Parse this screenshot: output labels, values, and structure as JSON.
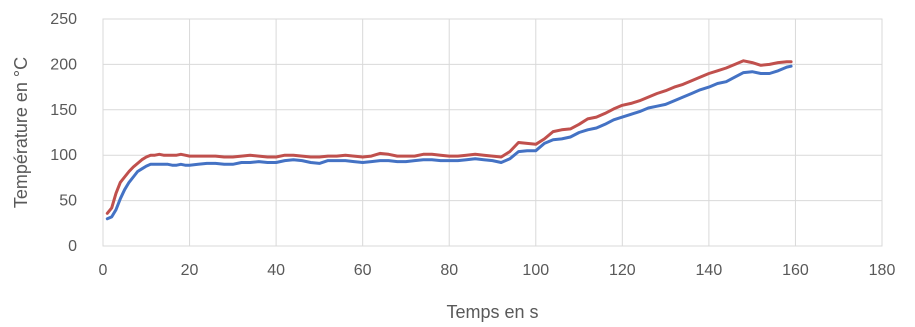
{
  "chart_data": {
    "type": "line",
    "title": "",
    "xlabel": "Temps en s",
    "ylabel": "Température en °C",
    "xlim": [
      0,
      180
    ],
    "ylim": [
      0,
      250
    ],
    "xticks": [
      0,
      20,
      40,
      60,
      80,
      100,
      120,
      140,
      160,
      180
    ],
    "yticks": [
      0,
      50,
      100,
      150,
      200,
      250
    ],
    "grid": true,
    "legend": "none",
    "series": [
      {
        "color": "#4472C4",
        "x": [
          1,
          2,
          3,
          4,
          5,
          6,
          7,
          8,
          9,
          10,
          11,
          12,
          13,
          14,
          15,
          16,
          17,
          18,
          19,
          20,
          22,
          24,
          26,
          28,
          30,
          32,
          34,
          36,
          38,
          40,
          42,
          44,
          46,
          48,
          50,
          52,
          54,
          56,
          58,
          60,
          62,
          64,
          66,
          68,
          70,
          72,
          74,
          76,
          78,
          80,
          82,
          84,
          86,
          88,
          90,
          92,
          94,
          96,
          98,
          100,
          102,
          104,
          106,
          108,
          110,
          112,
          114,
          116,
          118,
          120,
          122,
          124,
          126,
          128,
          130,
          132,
          134,
          136,
          138,
          140,
          142,
          144,
          146,
          148,
          150,
          152,
          154,
          156,
          158,
          159
        ],
        "y": [
          30,
          32,
          40,
          52,
          62,
          70,
          76,
          82,
          85,
          88,
          90,
          90,
          90,
          90,
          90,
          89,
          89,
          90,
          89,
          89,
          90,
          91,
          91,
          90,
          90,
          92,
          92,
          93,
          92,
          92,
          94,
          95,
          94,
          92,
          91,
          94,
          94,
          94,
          93,
          92,
          93,
          94,
          94,
          93,
          93,
          94,
          95,
          95,
          94,
          94,
          94,
          95,
          96,
          95,
          94,
          92,
          96,
          104,
          105,
          105,
          113,
          117,
          118,
          120,
          125,
          128,
          130,
          134,
          139,
          142,
          145,
          148,
          152,
          154,
          156,
          160,
          164,
          168,
          172,
          175,
          179,
          181,
          186,
          191,
          192,
          190,
          190,
          193,
          197,
          198
        ]
      },
      {
        "color": "#C0504D",
        "x": [
          1,
          2,
          3,
          4,
          5,
          6,
          7,
          8,
          9,
          10,
          11,
          12,
          13,
          14,
          15,
          16,
          17,
          18,
          19,
          20,
          22,
          24,
          26,
          28,
          30,
          32,
          34,
          36,
          38,
          40,
          42,
          44,
          46,
          48,
          50,
          52,
          54,
          56,
          58,
          60,
          62,
          64,
          66,
          68,
          70,
          72,
          74,
          76,
          78,
          80,
          82,
          84,
          86,
          88,
          90,
          92,
          94,
          96,
          98,
          100,
          102,
          104,
          106,
          108,
          110,
          112,
          114,
          116,
          118,
          120,
          122,
          124,
          126,
          128,
          130,
          132,
          134,
          136,
          138,
          140,
          142,
          144,
          146,
          148,
          150,
          152,
          154,
          156,
          158,
          159
        ],
        "y": [
          36,
          42,
          58,
          70,
          76,
          82,
          87,
          91,
          95,
          98,
          100,
          100,
          101,
          100,
          100,
          100,
          100,
          101,
          100,
          99,
          99,
          99,
          99,
          98,
          98,
          99,
          100,
          99,
          98,
          98,
          100,
          100,
          99,
          98,
          98,
          99,
          99,
          100,
          99,
          98,
          99,
          102,
          101,
          99,
          99,
          99,
          101,
          101,
          100,
          99,
          99,
          100,
          101,
          100,
          99,
          98,
          104,
          114,
          113,
          112,
          118,
          126,
          128,
          129,
          134,
          140,
          142,
          146,
          151,
          155,
          157,
          160,
          164,
          168,
          171,
          175,
          178,
          182,
          186,
          190,
          193,
          196,
          200,
          204,
          202,
          199,
          200,
          202,
          203,
          203
        ]
      }
    ]
  }
}
